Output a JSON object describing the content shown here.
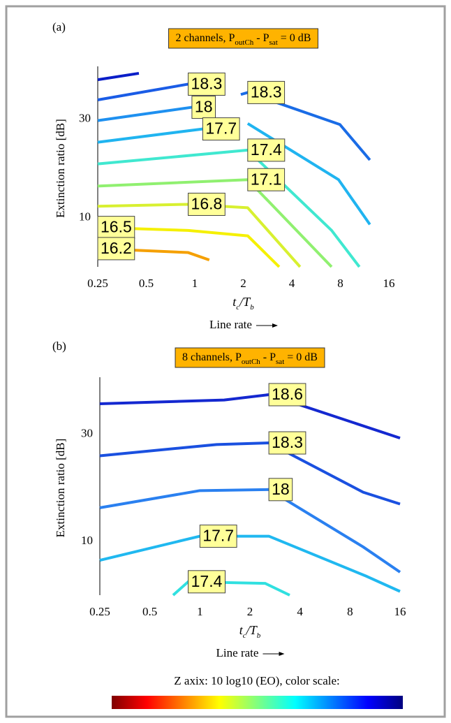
{
  "chart_data": [
    {
      "type": "contour",
      "panel_label": "(a)",
      "title": [
        "2 channels, P",
        {
          "sub": "outCh"
        },
        " - P",
        {
          "sub": "sat"
        },
        " = 0 dB"
      ],
      "xlabel": [
        "t",
        {
          "sub": "c"
        },
        "/T",
        {
          "sub": "b"
        }
      ],
      "xnote": "Line rate",
      "ylabel": "Extinction ratio [dB]",
      "xscale": "log",
      "xlim": [
        0.25,
        16
      ],
      "xticks": [
        0.25,
        0.5,
        1,
        2,
        4,
        8,
        16
      ],
      "ylim": [
        0,
        40
      ],
      "yticks": [
        10,
        30
      ],
      "series": [
        {
          "color": "#0a1ec8",
          "x": [
            0.25,
            0.45
          ],
          "values": [
            38,
            39.3
          ]
        },
        {
          "name": "18.3",
          "color": "#1a5ce6",
          "x": [
            0.25,
            0.91
          ],
          "values": [
            33.9,
            37.1
          ]
        },
        {
          "name": "18.3",
          "color": "#1a6ce6",
          "x": [
            1.93,
            2.13,
            7.95,
            12.2
          ],
          "values": [
            35,
            35.4,
            28.9,
            21.7
          ]
        },
        {
          "name": "18",
          "color": "#1e90f0",
          "x": [
            0.25,
            0.96
          ],
          "values": [
            29.7,
            32.4
          ]
        },
        {
          "name": "17.7",
          "color": "#20b4f0",
          "x": [
            0.25,
            1.12
          ],
          "values": [
            25.3,
            28
          ]
        },
        {
          "color": "#20b4f0",
          "x": [
            2.13,
            7.8,
            12.2
          ],
          "values": [
            29.1,
            17.7,
            8.6
          ]
        },
        {
          "name": "17.4",
          "color": "#40e8d0",
          "x": [
            0.25,
            2.13,
            7.06,
            10.5
          ],
          "values": [
            20.9,
            23.7,
            7.4,
            0
          ]
        },
        {
          "name": "17.1",
          "color": "#90f070",
          "x": [
            0.25,
            2.13,
            7.06
          ],
          "values": [
            16.4,
            17.7,
            0
          ]
        },
        {
          "name": "16.8",
          "color": "#d8f030",
          "x": [
            0.25,
            0.91,
            2.13,
            4.5
          ],
          "values": [
            12.3,
            12.7,
            12,
            0
          ]
        },
        {
          "name": "16.5",
          "color": "#f5f000",
          "x": [
            0.25,
            0.91,
            2.13,
            3.34
          ],
          "values": [
            8,
            7.4,
            6.3,
            0
          ]
        },
        {
          "name": "16.2",
          "color": "#f5a000",
          "x": [
            0.25,
            0.91,
            1.23
          ],
          "values": [
            3.7,
            2.9,
            1.4
          ]
        }
      ]
    },
    {
      "type": "contour",
      "panel_label": "(b)",
      "title": [
        "8 channels, P",
        {
          "sub": "outCh"
        },
        " - P",
        {
          "sub": "sat"
        },
        " = 0 dB"
      ],
      "xlabel": [
        "t",
        {
          "sub": "c"
        },
        "/T",
        {
          "sub": "b"
        }
      ],
      "xnote": "Line rate",
      "ylabel": "Extinction ratio [dB]",
      "xscale": "log",
      "xlim": [
        0.25,
        16
      ],
      "xticks": [
        0.25,
        0.5,
        1,
        2,
        4,
        8,
        16
      ],
      "ylim": [
        0,
        40
      ],
      "yticks": [
        10,
        30
      ],
      "series": [
        {
          "name": "18.6",
          "color": "#1428d0",
          "x": [
            0.25,
            1.4,
            2.6,
            16
          ],
          "values": [
            35.7,
            36.4,
            37.4,
            29.3
          ]
        },
        {
          "name": "18.3",
          "color": "#1a50e0",
          "x": [
            0.25,
            1.26,
            2.6,
            9.6,
            16
          ],
          "values": [
            26,
            28.1,
            28.4,
            19.2,
            17
          ]
        },
        {
          "name": "18",
          "color": "#2a80f0",
          "x": [
            0.25,
            1,
            2.6,
            9.6,
            16
          ],
          "values": [
            16.3,
            19.5,
            19.7,
            9,
            4.3
          ]
        },
        {
          "name": "17.7",
          "color": "#20b8f0",
          "x": [
            0.25,
            1,
            2.6,
            10.1,
            16
          ],
          "values": [
            6.5,
            11,
            11,
            3.5,
            0.7
          ]
        },
        {
          "name": "17.4",
          "color": "#30e0e0",
          "x": [
            0.69,
            0.85,
            2.47,
            3.47
          ],
          "values": [
            0,
            2.5,
            2.2,
            0
          ]
        }
      ]
    }
  ],
  "colorbar": {
    "label": "Z axix: 10 log10 (EO), color scale:"
  }
}
